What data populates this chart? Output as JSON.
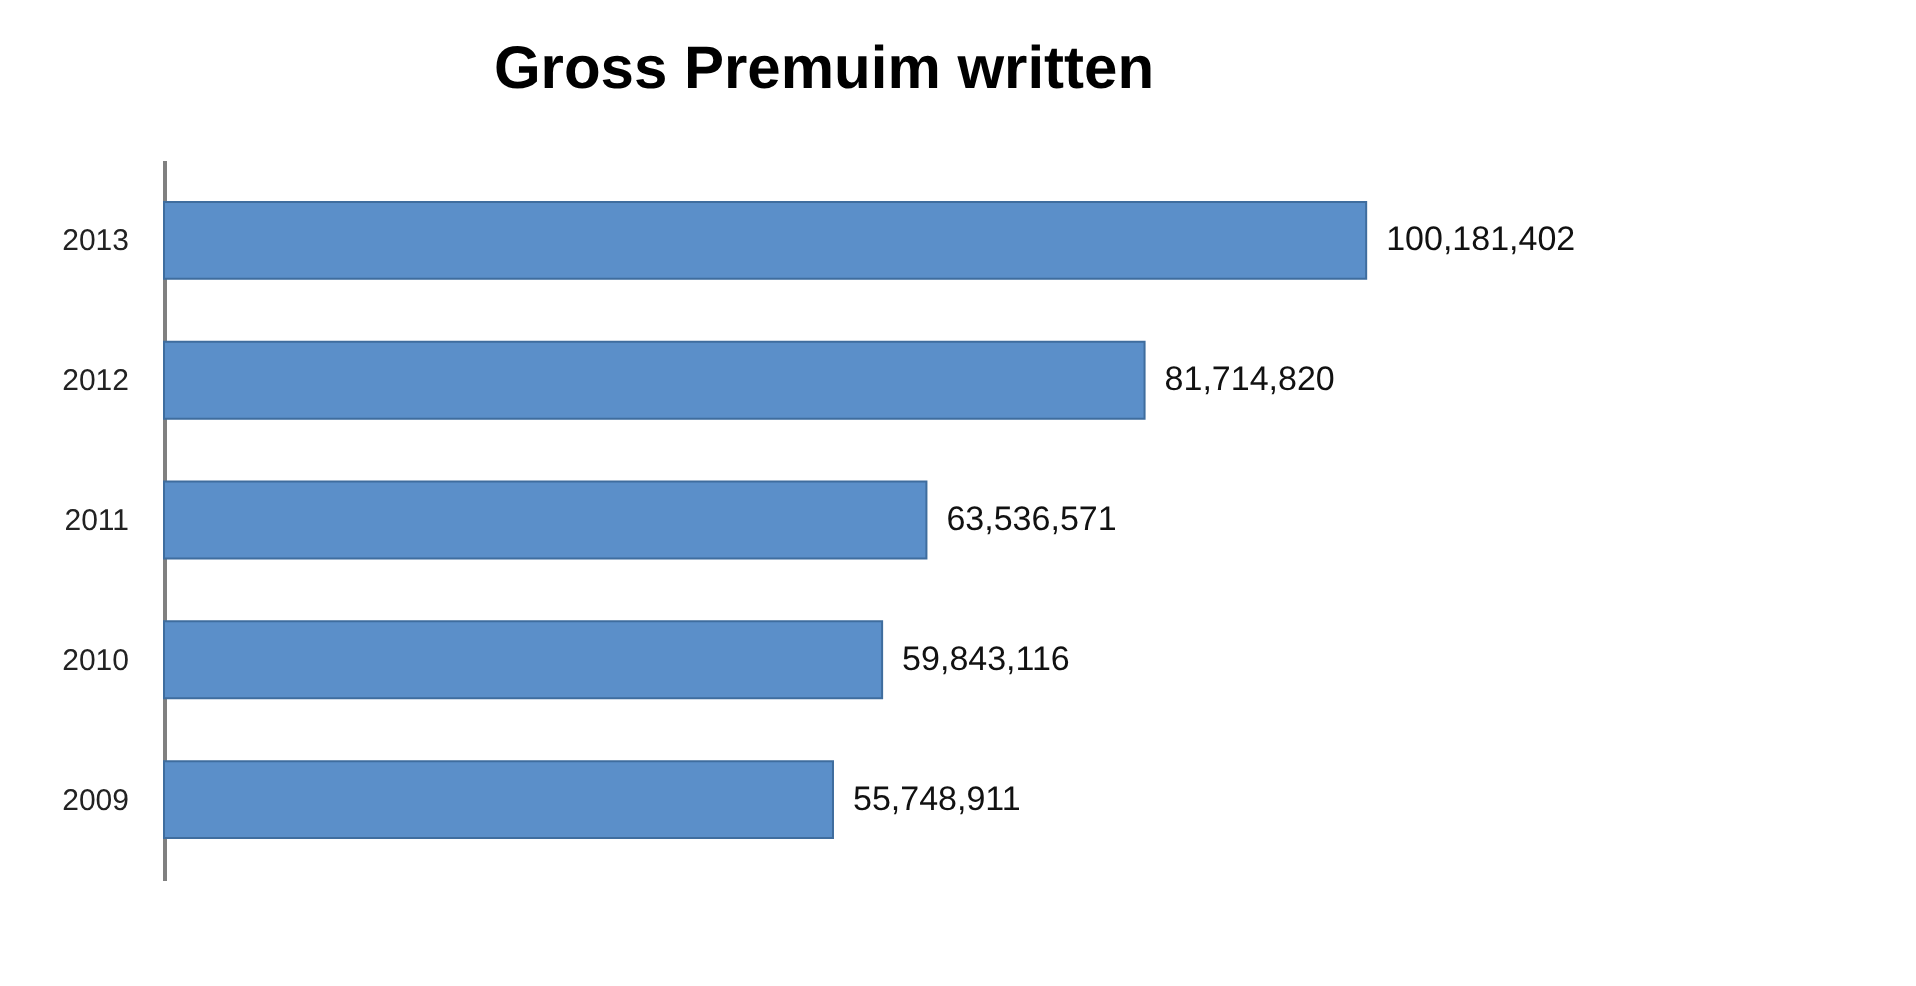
{
  "chart_data": {
    "type": "bar",
    "orientation": "horizontal",
    "title": "Gross Premuim written",
    "categories": [
      "2013",
      "2012",
      "2011",
      "2010",
      "2009"
    ],
    "values": [
      100181402,
      81714820,
      63536571,
      59843116,
      55748911
    ],
    "value_labels": [
      "100,181,402",
      "81,714,820",
      "63,536,571",
      "59,843,116",
      "55,748,911"
    ],
    "color": "#5b8fc9"
  }
}
